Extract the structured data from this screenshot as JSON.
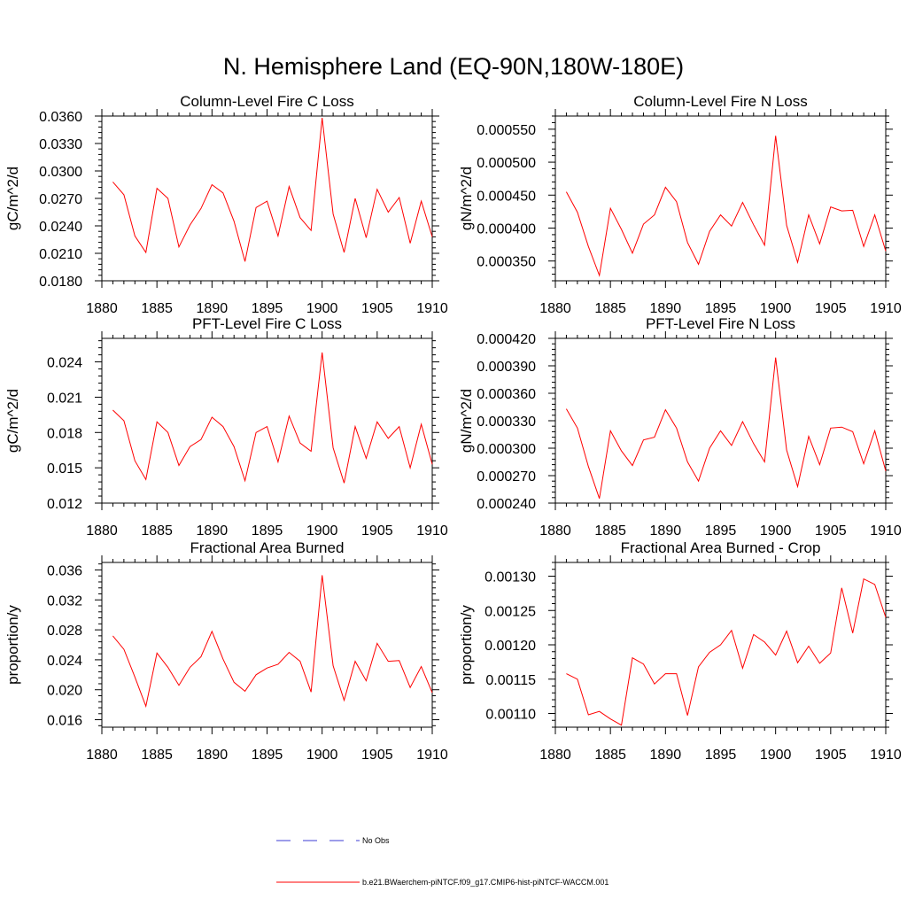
{
  "figure": {
    "title": "N. Hemisphere Land (EQ-90N,180W-180E)"
  },
  "colors": {
    "series": "#ff0000",
    "obs": "#3b3bd6",
    "axis": "#000000"
  },
  "legend": {
    "placement": "bottom",
    "entries": [
      {
        "label": "No Obs",
        "style": "dashed",
        "color": "#3b3bd6"
      },
      {
        "label": "b.e21.BWaerchem-piNTCF.f09_g17.CMIP6-hist-piNTCF-WACCM.001",
        "style": "solid",
        "color": "#ff0000"
      }
    ]
  },
  "chart_data": [
    {
      "type": "line",
      "title": "Column-Level Fire C Loss",
      "ylabel": "gC/m^2/d",
      "xlabel": "",
      "xlim": [
        1880,
        1910
      ],
      "ylim": [
        0.018,
        0.036
      ],
      "xticks": [
        1880,
        1885,
        1890,
        1895,
        1900,
        1905,
        1910
      ],
      "yticks": [
        0.018,
        0.021,
        0.024,
        0.027,
        0.03,
        0.033,
        0.036
      ],
      "ytick_labels": [
        "0.0180",
        "0.0210",
        "0.0240",
        "0.0270",
        "0.0300",
        "0.0330",
        "0.0360"
      ],
      "x": [
        1881,
        1882,
        1883,
        1884,
        1885,
        1886,
        1887,
        1888,
        1889,
        1890,
        1891,
        1892,
        1893,
        1894,
        1895,
        1896,
        1897,
        1898,
        1899,
        1900,
        1901,
        1902,
        1903,
        1904,
        1905,
        1906,
        1907,
        1908,
        1909,
        1910
      ],
      "series": [
        {
          "values": [
            0.0288,
            0.0274,
            0.0229,
            0.0211,
            0.0281,
            0.027,
            0.0217,
            0.0241,
            0.0259,
            0.0285,
            0.0276,
            0.0245,
            0.0201,
            0.026,
            0.0267,
            0.0229,
            0.0283,
            0.0249,
            0.0235,
            0.0358,
            0.0253,
            0.0211,
            0.027,
            0.0227,
            0.028,
            0.0255,
            0.0271,
            0.0221,
            0.0267,
            0.0228
          ]
        }
      ]
    },
    {
      "type": "line",
      "title": "Column-Level Fire N Loss",
      "ylabel": "gN/m^2/d",
      "xlabel": "",
      "xlim": [
        1880,
        1910
      ],
      "ylim": [
        0.00032,
        0.00057
      ],
      "xticks": [
        1880,
        1885,
        1890,
        1895,
        1900,
        1905,
        1910
      ],
      "yticks": [
        0.00035,
        0.0004,
        0.00045,
        0.0005,
        0.00055
      ],
      "ytick_labels": [
        "0.000350",
        "0.000400",
        "0.000450",
        "0.000500",
        "0.000550"
      ],
      "x": [
        1881,
        1882,
        1883,
        1884,
        1885,
        1886,
        1887,
        1888,
        1889,
        1890,
        1891,
        1892,
        1893,
        1894,
        1895,
        1896,
        1897,
        1898,
        1899,
        1900,
        1901,
        1902,
        1903,
        1904,
        1905,
        1906,
        1907,
        1908,
        1909,
        1910
      ],
      "series": [
        {
          "values": [
            0.000455,
            0.000424,
            0.000372,
            0.000328,
            0.00043,
            0.000398,
            0.000362,
            0.000406,
            0.00042,
            0.000462,
            0.00044,
            0.000378,
            0.000345,
            0.000395,
            0.00042,
            0.000403,
            0.000439,
            0.000405,
            0.000374,
            0.00054,
            0.000404,
            0.000348,
            0.00042,
            0.000376,
            0.000432,
            0.000426,
            0.000427,
            0.000372,
            0.00042,
            0.000365
          ]
        }
      ]
    },
    {
      "type": "line",
      "title": "PFT-Level Fire C Loss",
      "ylabel": "gC/m^2/d",
      "xlabel": "",
      "xlim": [
        1880,
        1910
      ],
      "ylim": [
        0.012,
        0.026
      ],
      "xticks": [
        1880,
        1885,
        1890,
        1895,
        1900,
        1905,
        1910
      ],
      "yticks": [
        0.012,
        0.015,
        0.018,
        0.021,
        0.024
      ],
      "ytick_labels": [
        "0.012",
        "0.015",
        "0.018",
        "0.021",
        "0.024"
      ],
      "x": [
        1881,
        1882,
        1883,
        1884,
        1885,
        1886,
        1887,
        1888,
        1889,
        1890,
        1891,
        1892,
        1893,
        1894,
        1895,
        1896,
        1897,
        1898,
        1899,
        1900,
        1901,
        1902,
        1903,
        1904,
        1905,
        1906,
        1907,
        1908,
        1909,
        1910
      ],
      "series": [
        {
          "values": [
            0.0199,
            0.019,
            0.0156,
            0.014,
            0.0189,
            0.018,
            0.0152,
            0.0168,
            0.0174,
            0.0193,
            0.0185,
            0.0168,
            0.0139,
            0.018,
            0.0185,
            0.0155,
            0.0194,
            0.0171,
            0.0164,
            0.0248,
            0.0167,
            0.0137,
            0.0185,
            0.0158,
            0.0189,
            0.0175,
            0.0185,
            0.015,
            0.0187,
            0.0153
          ]
        }
      ]
    },
    {
      "type": "line",
      "title": "PFT-Level Fire N Loss",
      "ylabel": "gN/m^2/d",
      "xlabel": "",
      "xlim": [
        1880,
        1910
      ],
      "ylim": [
        0.00024,
        0.00042
      ],
      "xticks": [
        1880,
        1885,
        1890,
        1895,
        1900,
        1905,
        1910
      ],
      "yticks": [
        0.00024,
        0.00027,
        0.0003,
        0.00033,
        0.00036,
        0.00039,
        0.00042
      ],
      "ytick_labels": [
        "0.000240",
        "0.000270",
        "0.000300",
        "0.000330",
        "0.000360",
        "0.000390",
        "0.000420"
      ],
      "x": [
        1881,
        1882,
        1883,
        1884,
        1885,
        1886,
        1887,
        1888,
        1889,
        1890,
        1891,
        1892,
        1893,
        1894,
        1895,
        1896,
        1897,
        1898,
        1899,
        1900,
        1901,
        1902,
        1903,
        1904,
        1905,
        1906,
        1907,
        1908,
        1909,
        1910
      ],
      "series": [
        {
          "values": [
            0.000343,
            0.000322,
            0.00028,
            0.000245,
            0.000319,
            0.000297,
            0.000281,
            0.000309,
            0.000312,
            0.000342,
            0.000322,
            0.000285,
            0.000264,
            0.0003,
            0.000319,
            0.000303,
            0.000329,
            0.000305,
            0.000285,
            0.000399,
            0.000298,
            0.000258,
            0.000313,
            0.000282,
            0.000322,
            0.000323,
            0.000318,
            0.000283,
            0.000319,
            0.000275
          ]
        }
      ]
    },
    {
      "type": "line",
      "title": "Fractional Area Burned",
      "ylabel": "proportion/y",
      "xlabel": "",
      "xlim": [
        1880,
        1910
      ],
      "ylim": [
        0.015,
        0.037
      ],
      "xticks": [
        1880,
        1885,
        1890,
        1895,
        1900,
        1905,
        1910
      ],
      "yticks": [
        0.016,
        0.02,
        0.024,
        0.028,
        0.032,
        0.036
      ],
      "ytick_labels": [
        "0.016",
        "0.020",
        "0.024",
        "0.028",
        "0.032",
        "0.036"
      ],
      "x": [
        1881,
        1882,
        1883,
        1884,
        1885,
        1886,
        1887,
        1888,
        1889,
        1890,
        1891,
        1892,
        1893,
        1894,
        1895,
        1896,
        1897,
        1898,
        1899,
        1900,
        1901,
        1902,
        1903,
        1904,
        1905,
        1906,
        1907,
        1908,
        1909,
        1910
      ],
      "series": [
        {
          "values": [
            0.0272,
            0.0254,
            0.0217,
            0.0178,
            0.0249,
            0.023,
            0.0206,
            0.023,
            0.0244,
            0.0278,
            0.0241,
            0.021,
            0.0198,
            0.022,
            0.0229,
            0.0234,
            0.025,
            0.0238,
            0.0197,
            0.0353,
            0.0232,
            0.0186,
            0.0238,
            0.0212,
            0.0262,
            0.0238,
            0.0239,
            0.0203,
            0.0231,
            0.0196
          ]
        }
      ]
    },
    {
      "type": "line",
      "title": "Fractional Area Burned - Crop",
      "ylabel": "proportion/y",
      "xlabel": "",
      "xlim": [
        1880,
        1910
      ],
      "ylim": [
        0.00108,
        0.00132
      ],
      "xticks": [
        1880,
        1885,
        1890,
        1895,
        1900,
        1905,
        1910
      ],
      "yticks": [
        0.0011,
        0.00115,
        0.0012,
        0.00125,
        0.0013
      ],
      "ytick_labels": [
        "0.00110",
        "0.00115",
        "0.00120",
        "0.00125",
        "0.00130"
      ],
      "x": [
        1881,
        1882,
        1883,
        1884,
        1885,
        1886,
        1887,
        1888,
        1889,
        1890,
        1891,
        1892,
        1893,
        1894,
        1895,
        1896,
        1897,
        1898,
        1899,
        1900,
        1901,
        1902,
        1903,
        1904,
        1905,
        1906,
        1907,
        1908,
        1909,
        1910
      ],
      "series": [
        {
          "values": [
            0.001158,
            0.00115,
            0.001098,
            0.001103,
            0.001092,
            0.001083,
            0.001181,
            0.001172,
            0.001143,
            0.001158,
            0.001158,
            0.001097,
            0.001168,
            0.001189,
            0.0012,
            0.001221,
            0.001166,
            0.001215,
            0.001204,
            0.001185,
            0.00122,
            0.001174,
            0.001198,
            0.001173,
            0.001188,
            0.001283,
            0.001217,
            0.001296,
            0.001288,
            0.00124
          ]
        }
      ]
    }
  ]
}
